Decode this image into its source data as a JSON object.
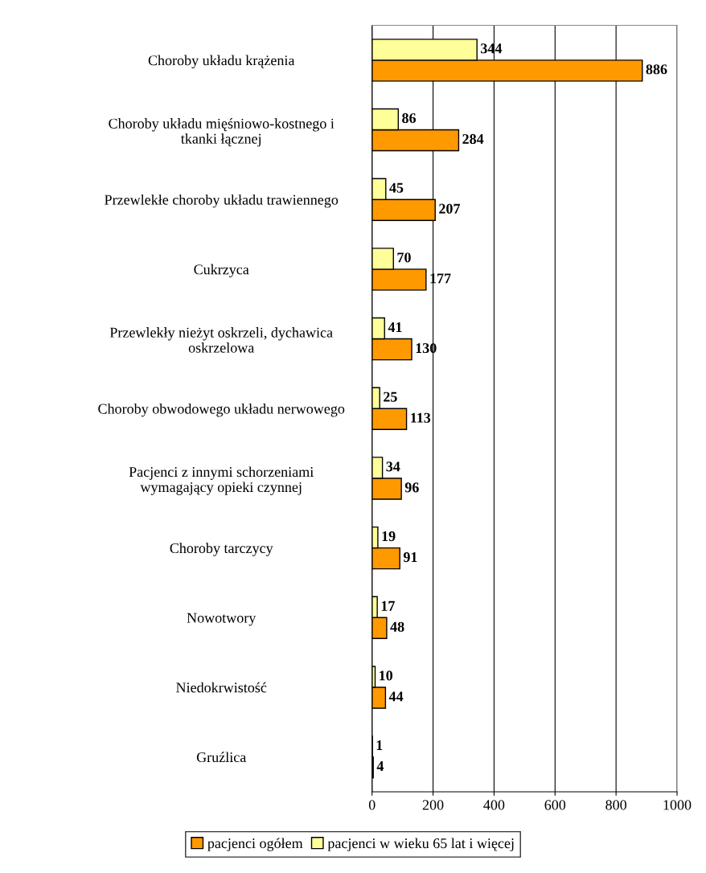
{
  "chart_data": {
    "type": "bar",
    "orientation": "horizontal",
    "categories": [
      "Choroby układu krążenia",
      "Choroby układu mięśniowo-kostnego i\ntkanki łącznej",
      "Przewlekłe choroby układu trawiennego",
      "Cukrzyca",
      "Przewlekły nieżyt oskrzeli, dychawica\noskrzelowa",
      "Choroby obwodowego układu nerwowego",
      "Pacjenci z innymi schorzeniami\nwymagający opieki czynnej",
      "Choroby tarczycy",
      "Nowotwory",
      "Niedokrwistość",
      "Gruźlica"
    ],
    "series": [
      {
        "name": "pacjenci ogółem",
        "color": "#ff9900",
        "values": [
          886,
          284,
          207,
          177,
          130,
          113,
          96,
          91,
          48,
          44,
          4
        ]
      },
      {
        "name": "pacjenci w wieku 65 lat i więcej",
        "color": "#ffff99",
        "values": [
          344,
          86,
          45,
          70,
          41,
          25,
          34,
          19,
          17,
          10,
          1
        ]
      }
    ],
    "xlim": [
      0,
      1000
    ],
    "xticks": [
      0,
      200,
      400,
      600,
      800,
      1000
    ],
    "grid": "x",
    "legend": "bottom",
    "data_labels": true
  }
}
